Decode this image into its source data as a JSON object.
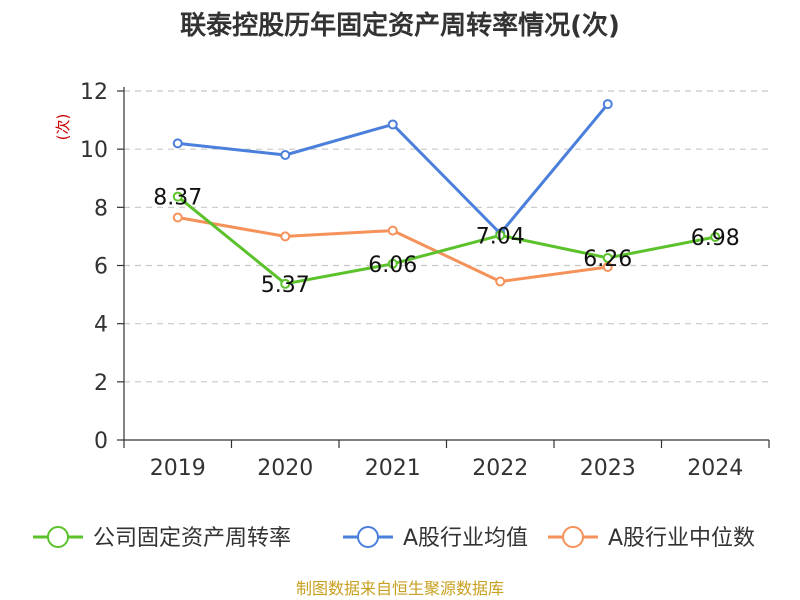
{
  "chart_data": {
    "type": "line",
    "title": "联泰控股历年固定资产周转率情况(次)",
    "ylabel": "(次)",
    "xlabel": "",
    "ylim": [
      0,
      12
    ],
    "yticks": [
      0,
      2,
      4,
      6,
      8,
      10,
      12
    ],
    "categories": [
      "2019",
      "2020",
      "2021",
      "2022",
      "2023",
      "2024"
    ],
    "grid": true,
    "legend_position": "bottom",
    "series": [
      {
        "name": "公司固定资产周转率",
        "color": "#5cc22c",
        "values": [
          8.37,
          5.37,
          6.06,
          7.04,
          6.26,
          6.98
        ],
        "labels": [
          "8.37",
          "5.37",
          "6.06",
          "7.04",
          "6.26",
          "6.98"
        ]
      },
      {
        "name": "A股行业均值",
        "color": "#4a7fdb",
        "values": [
          10.2,
          9.8,
          10.85,
          7.1,
          11.55,
          null
        ]
      },
      {
        "name": "A股行业中位数",
        "color": "#f5925a",
        "values": [
          7.65,
          7.0,
          7.2,
          5.45,
          5.95,
          null
        ]
      }
    ],
    "source": "制图数据来自恒生聚源数据库"
  }
}
